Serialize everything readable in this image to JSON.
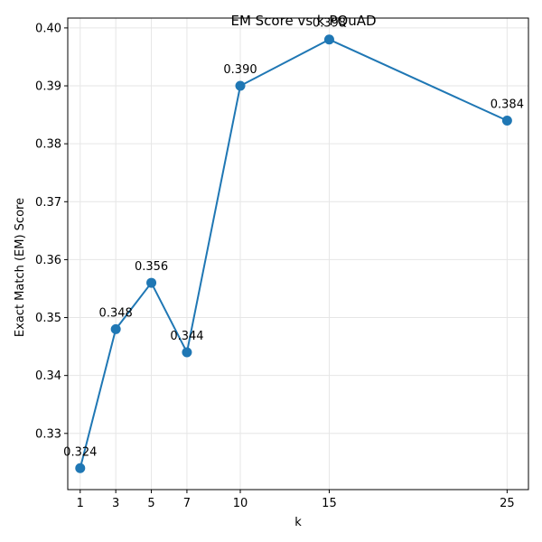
{
  "chart_data": {
    "type": "line",
    "title": "EM Score vs k PQuAD",
    "xlabel": "k",
    "ylabel": "Exact Match (EM) Score",
    "x": [
      1,
      3,
      5,
      7,
      10,
      15,
      25
    ],
    "y": [
      0.324,
      0.348,
      0.356,
      0.344,
      0.39,
      0.398,
      0.384
    ],
    "data_labels": [
      "0.324",
      "0.348",
      "0.356",
      "0.344",
      "0.390",
      "0.398",
      "0.384"
    ],
    "xticks": [
      "1",
      "3",
      "5",
      "7",
      "10",
      "15",
      "25"
    ],
    "yticks": [
      "0.33",
      "0.34",
      "0.35",
      "0.36",
      "0.37",
      "0.38",
      "0.39",
      "0.40"
    ],
    "xlim": [
      0.3,
      26.2
    ],
    "ylim": [
      0.3203,
      0.4017
    ],
    "grid": true,
    "line_color": "#1f77b4",
    "marker": "circle"
  }
}
